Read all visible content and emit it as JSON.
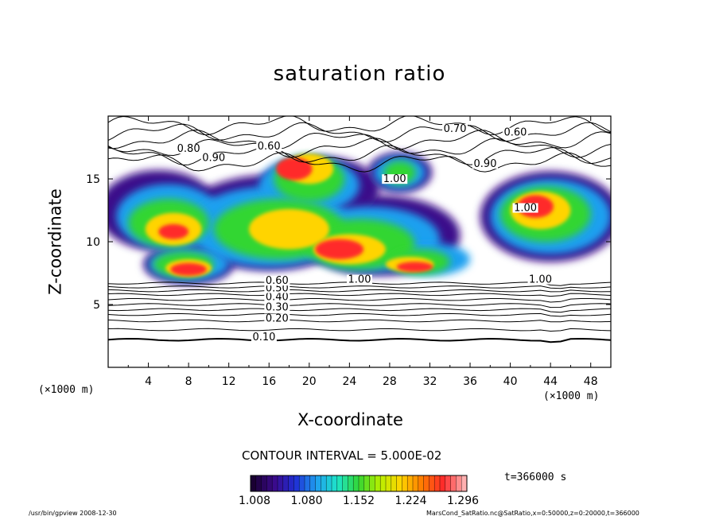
{
  "chart_data": {
    "type": "heatmap",
    "title": "saturation ratio",
    "xlabel": "X-coordinate",
    "ylabel": "Z-coordinate",
    "x_unit": "(×1000 m)",
    "xlim": [
      0,
      50
    ],
    "ylim": [
      0,
      20
    ],
    "x_ticks": [
      "4",
      "8",
      "12",
      "16",
      "20",
      "24",
      "28",
      "32",
      "36",
      "40",
      "44",
      "48"
    ],
    "y_ticks": [
      "5",
      "10",
      "15"
    ],
    "contour_interval": "CONTOUR INTERVAL = 5.000E-02",
    "time": "t=366000 s",
    "colorbar": {
      "ticks": [
        "1.008",
        "1.080",
        "1.152",
        "1.224",
        "1.296"
      ],
      "colors": [
        "#1a0033",
        "#3b0a8a",
        "#1f2fd6",
        "#1fa0f0",
        "#1ee6c8",
        "#33d633",
        "#b8f000",
        "#ffd400",
        "#ff7a00",
        "#ff2a2a",
        "#ffb0b0"
      ]
    },
    "contour_labels": [
      {
        "text": "0.10",
        "x": 15.5,
        "z": 2.2
      },
      {
        "text": "0.20",
        "x": 16.8,
        "z": 3.7
      },
      {
        "text": "0.30",
        "x": 16.8,
        "z": 4.6
      },
      {
        "text": "0.40",
        "x": 16.8,
        "z": 5.4
      },
      {
        "text": "0.50",
        "x": 16.8,
        "z": 6.1
      },
      {
        "text": "0.60",
        "x": 16.8,
        "z": 6.7
      },
      {
        "text": "1.00",
        "x": 25.0,
        "z": 6.8
      },
      {
        "text": "1.00",
        "x": 28.5,
        "z": 14.8
      },
      {
        "text": "1.00",
        "x": 41.5,
        "z": 12.5
      },
      {
        "text": "1.00",
        "x": 43.0,
        "z": 6.8
      },
      {
        "text": "0.90",
        "x": 37.5,
        "z": 16.0
      },
      {
        "text": "0.60",
        "x": 40.5,
        "z": 18.5
      },
      {
        "text": "0.70",
        "x": 34.5,
        "z": 18.8
      },
      {
        "text": "0.80",
        "x": 8.0,
        "z": 17.2
      },
      {
        "text": "0.90",
        "x": 10.5,
        "z": 16.5
      },
      {
        "text": "0.60",
        "x": 16.0,
        "z": 17.4
      }
    ]
  },
  "footer": {
    "left": "/usr/bin/gpview   2008-12-30",
    "right": "MarsCond_SatRatio.nc@SatRatio,x=0:50000,z=0:20000,t=366000"
  }
}
